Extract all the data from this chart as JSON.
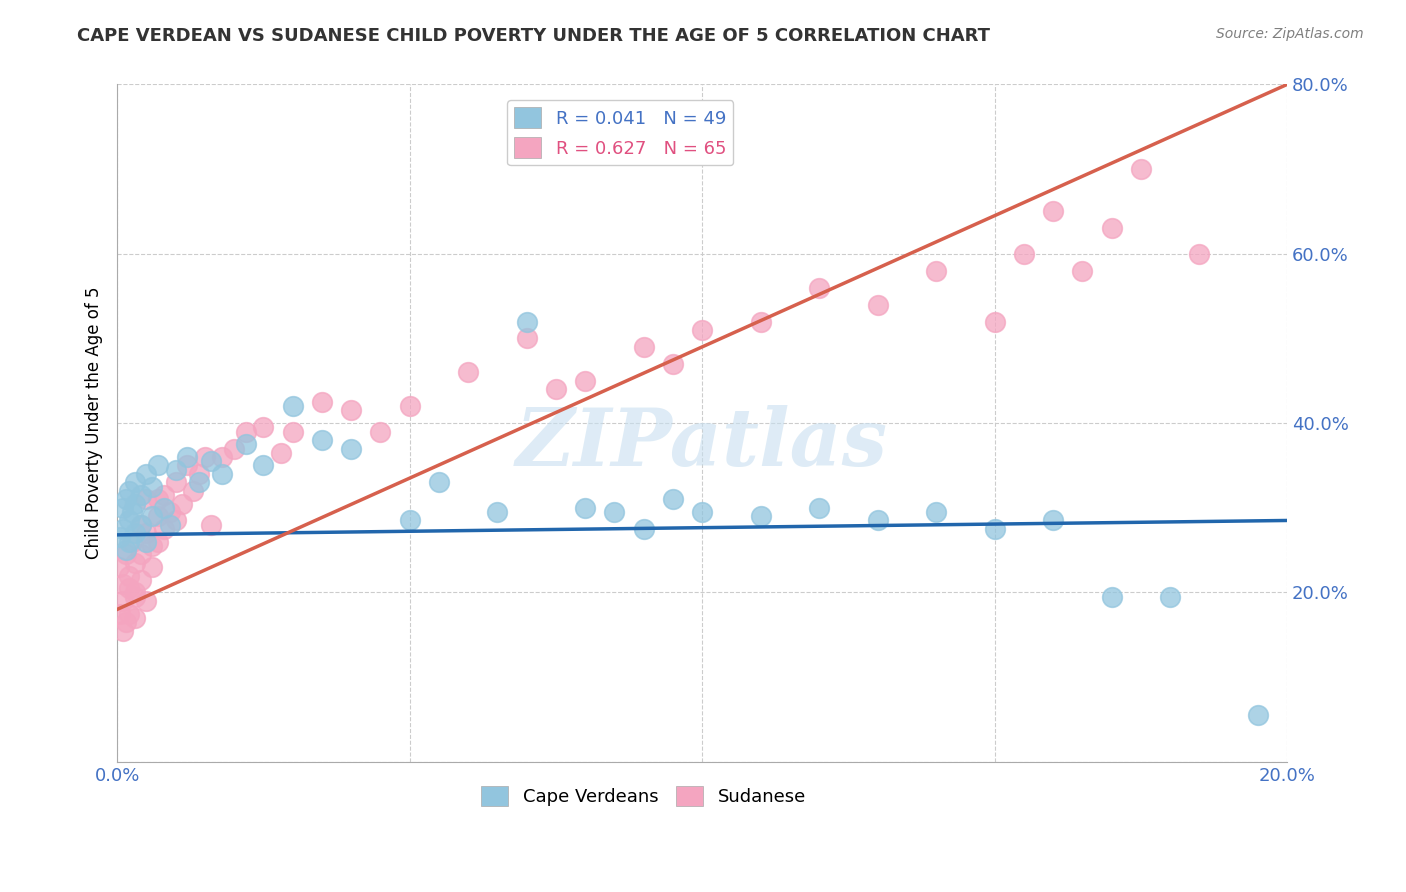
{
  "title": "CAPE VERDEAN VS SUDANESE CHILD POVERTY UNDER THE AGE OF 5 CORRELATION CHART",
  "source": "Source: ZipAtlas.com",
  "ylabel": "Child Poverty Under the Age of 5",
  "xlim": [
    0.0,
    0.2
  ],
  "ylim": [
    0.0,
    0.8
  ],
  "xticks": [
    0.0,
    0.05,
    0.1,
    0.15,
    0.2
  ],
  "yticks": [
    0.0,
    0.2,
    0.4,
    0.6,
    0.8
  ],
  "legend_entries": [
    {
      "label": "R = 0.041   N = 49",
      "color": "#92c5de"
    },
    {
      "label": "R = 0.627   N = 65",
      "color": "#f4a5c0"
    }
  ],
  "bottom_legend": [
    {
      "label": "Cape Verdeans",
      "color": "#92c5de"
    },
    {
      "label": "Sudanese",
      "color": "#f4a5c0"
    }
  ],
  "blue_scatter_x": [
    0.0005,
    0.001,
    0.001,
    0.0015,
    0.0015,
    0.002,
    0.002,
    0.002,
    0.0025,
    0.003,
    0.003,
    0.003,
    0.004,
    0.004,
    0.005,
    0.005,
    0.006,
    0.006,
    0.007,
    0.008,
    0.009,
    0.01,
    0.012,
    0.014,
    0.016,
    0.018,
    0.022,
    0.025,
    0.03,
    0.035,
    0.04,
    0.05,
    0.055,
    0.065,
    0.07,
    0.08,
    0.085,
    0.09,
    0.095,
    0.1,
    0.11,
    0.12,
    0.13,
    0.14,
    0.15,
    0.16,
    0.17,
    0.18,
    0.195
  ],
  "blue_scatter_y": [
    0.265,
    0.3,
    0.275,
    0.31,
    0.25,
    0.32,
    0.285,
    0.26,
    0.295,
    0.33,
    0.27,
    0.305,
    0.315,
    0.28,
    0.34,
    0.26,
    0.325,
    0.29,
    0.35,
    0.3,
    0.28,
    0.345,
    0.36,
    0.33,
    0.355,
    0.34,
    0.375,
    0.35,
    0.42,
    0.38,
    0.37,
    0.285,
    0.33,
    0.295,
    0.52,
    0.3,
    0.295,
    0.275,
    0.31,
    0.295,
    0.29,
    0.3,
    0.285,
    0.295,
    0.275,
    0.285,
    0.195,
    0.195,
    0.055
  ],
  "pink_scatter_x": [
    0.0003,
    0.0005,
    0.001,
    0.001,
    0.001,
    0.0015,
    0.0015,
    0.002,
    0.002,
    0.002,
    0.0025,
    0.003,
    0.003,
    0.003,
    0.003,
    0.004,
    0.004,
    0.004,
    0.005,
    0.005,
    0.005,
    0.006,
    0.006,
    0.007,
    0.007,
    0.007,
    0.008,
    0.008,
    0.009,
    0.01,
    0.01,
    0.011,
    0.012,
    0.013,
    0.014,
    0.015,
    0.016,
    0.018,
    0.02,
    0.022,
    0.025,
    0.028,
    0.03,
    0.035,
    0.04,
    0.045,
    0.05,
    0.06,
    0.07,
    0.075,
    0.08,
    0.09,
    0.095,
    0.1,
    0.11,
    0.12,
    0.13,
    0.14,
    0.15,
    0.155,
    0.16,
    0.165,
    0.17,
    0.175,
    0.185
  ],
  "pink_scatter_y": [
    0.23,
    0.175,
    0.155,
    0.19,
    0.21,
    0.165,
    0.245,
    0.175,
    0.205,
    0.22,
    0.26,
    0.2,
    0.17,
    0.235,
    0.195,
    0.245,
    0.28,
    0.215,
    0.27,
    0.19,
    0.31,
    0.255,
    0.23,
    0.29,
    0.26,
    0.31,
    0.275,
    0.315,
    0.295,
    0.285,
    0.33,
    0.305,
    0.35,
    0.32,
    0.34,
    0.36,
    0.28,
    0.36,
    0.37,
    0.39,
    0.395,
    0.365,
    0.39,
    0.425,
    0.415,
    0.39,
    0.42,
    0.46,
    0.5,
    0.44,
    0.45,
    0.49,
    0.47,
    0.51,
    0.52,
    0.56,
    0.54,
    0.58,
    0.52,
    0.6,
    0.65,
    0.58,
    0.63,
    0.7,
    0.6
  ],
  "blue_line_x": [
    0.0,
    0.2
  ],
  "blue_line_y": [
    0.268,
    0.285
  ],
  "pink_line_x": [
    0.0,
    0.2
  ],
  "pink_line_y": [
    0.18,
    0.8
  ],
  "blue_color": "#92c5de",
  "pink_color": "#f4a5c0",
  "blue_line_color": "#2166ac",
  "pink_line_color": "#d6604d",
  "watermark": "ZIPatlas",
  "grid_color": "#cccccc",
  "title_color": "#333333",
  "tick_label_color": "#4472c4",
  "figsize": [
    14.06,
    8.92
  ],
  "dpi": 100
}
